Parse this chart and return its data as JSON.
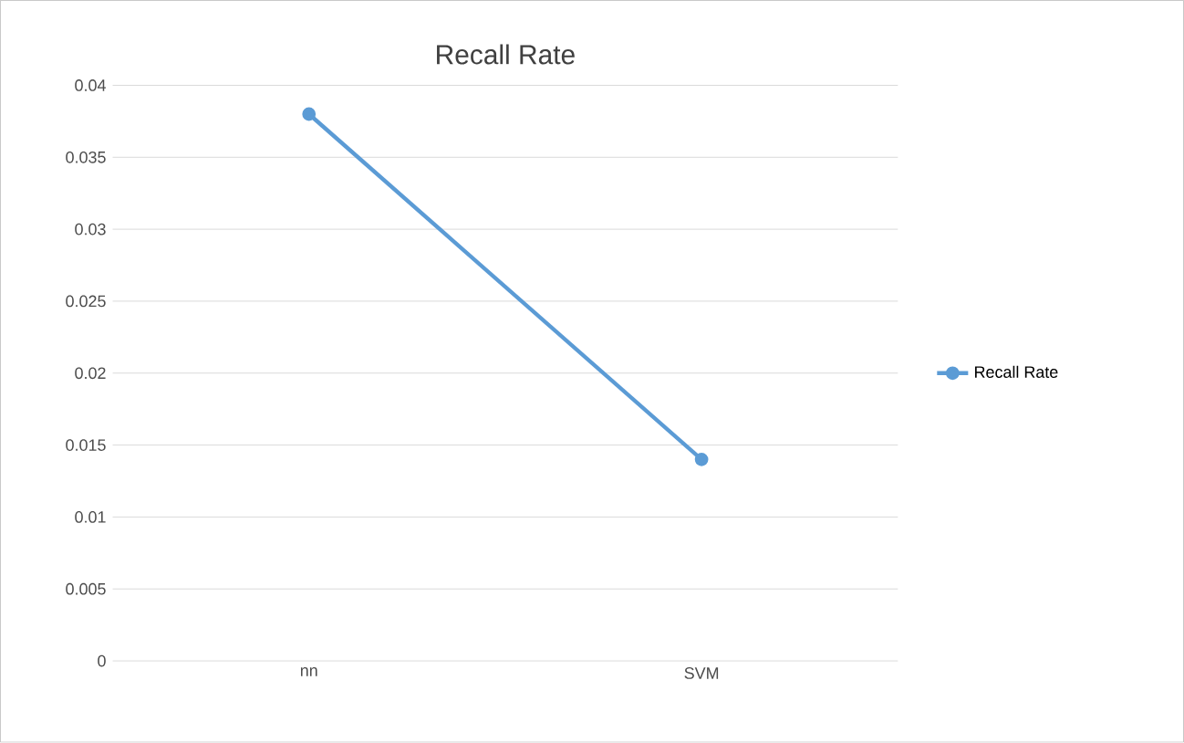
{
  "chart_data": {
    "type": "line",
    "title": "Recall Rate",
    "categories": [
      "nn",
      "SVM"
    ],
    "series": [
      {
        "name": "Recall Rate",
        "color": "#5b9bd5",
        "values": [
          0.038,
          0.014
        ]
      }
    ],
    "ylim": [
      0,
      0.04
    ],
    "yticks": [
      0,
      0.005,
      0.01,
      0.015,
      0.02,
      0.025,
      0.03,
      0.035,
      0.04
    ],
    "grid": "y",
    "legend": "right",
    "marker": "circle"
  }
}
